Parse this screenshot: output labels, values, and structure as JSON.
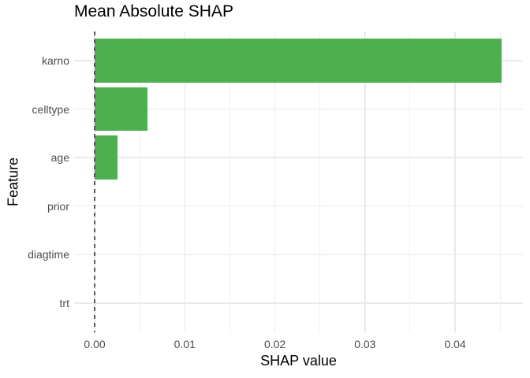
{
  "chart_data": {
    "type": "bar",
    "orientation": "horizontal",
    "title": "Mean Absolute SHAP",
    "xlabel": "SHAP value",
    "ylabel": "Feature",
    "categories": [
      "karno",
      "celltype",
      "age",
      "prior",
      "diagtime",
      "trt"
    ],
    "values": [
      0.0452,
      0.0059,
      0.0025,
      0.0,
      0.0,
      0.0
    ],
    "x_ticks": [
      {
        "value": 0.0,
        "label": "0.00"
      },
      {
        "value": 0.01,
        "label": "0.01"
      },
      {
        "value": 0.02,
        "label": "0.02"
      },
      {
        "value": 0.03,
        "label": "0.03"
      },
      {
        "value": 0.04,
        "label": "0.04"
      }
    ],
    "x_minor_ticks": [
      0.005,
      0.015,
      0.025,
      0.035,
      0.045
    ],
    "xlim": [
      -0.00228,
      0.04752
    ],
    "grid": "on",
    "legend": "none",
    "bar_color": "#4caf50",
    "gridline_color": "#e9e9e9",
    "minor_gridline_color": "#f0f0f0",
    "background_color": "#ffffff",
    "tick_label_color": "#4d4d4d",
    "axis_title_color": "#000000",
    "title_color": "#000000",
    "reference_line": {
      "x": 0.0,
      "style": "dashed",
      "color": "#5b5b5b"
    }
  }
}
